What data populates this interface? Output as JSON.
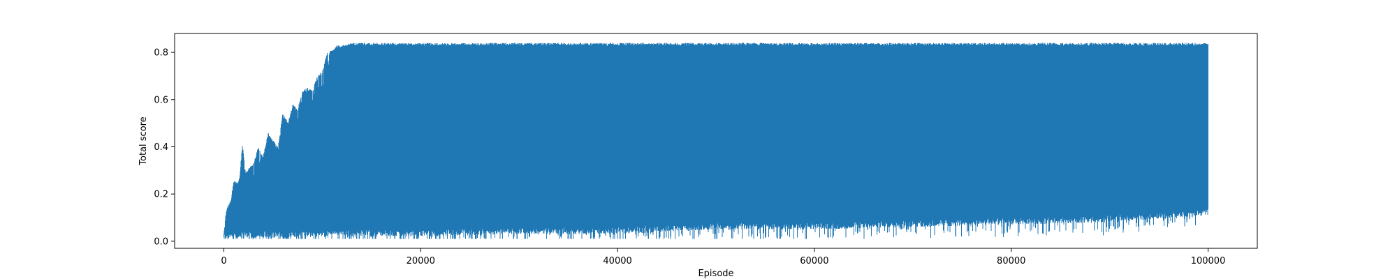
{
  "chart_data": {
    "type": "line",
    "title": "",
    "xlabel": "Episode",
    "ylabel": "Total score",
    "xlim": [
      -5000,
      105000
    ],
    "ylim": [
      -0.03,
      0.88
    ],
    "xticks": [
      0,
      20000,
      40000,
      60000,
      80000,
      100000
    ],
    "xtick_labels": [
      "0",
      "20000",
      "40000",
      "60000",
      "80000",
      "100000"
    ],
    "yticks": [
      0.0,
      0.2,
      0.4,
      0.6,
      0.8
    ],
    "ytick_labels": [
      "0.0",
      "0.2",
      "0.4",
      "0.6",
      "0.8"
    ],
    "grid": false,
    "legend": "none",
    "series": [
      {
        "color": "#1f77b4",
        "envelope_x": [
          0,
          200,
          400,
          700,
          1000,
          1300,
          1600,
          1900,
          2200,
          2500,
          3000,
          3500,
          4000,
          4500,
          5000,
          5500,
          6000,
          6500,
          7000,
          7500,
          8000,
          8500,
          9000,
          9500,
          10000,
          10500,
          11000,
          11500,
          12000,
          13000,
          14000,
          20000,
          30000,
          40000,
          50000,
          60000,
          70000,
          80000,
          90000,
          100000
        ],
        "envelope_upper": [
          0.04,
          0.12,
          0.15,
          0.17,
          0.26,
          0.25,
          0.27,
          0.42,
          0.29,
          0.31,
          0.33,
          0.4,
          0.36,
          0.46,
          0.43,
          0.4,
          0.55,
          0.5,
          0.58,
          0.56,
          0.64,
          0.65,
          0.64,
          0.7,
          0.72,
          0.8,
          0.81,
          0.83,
          0.83,
          0.84,
          0.84,
          0.84,
          0.84,
          0.84,
          0.84,
          0.84,
          0.84,
          0.84,
          0.84,
          0.84
        ],
        "envelope_lower": [
          0.01,
          0.01,
          0.01,
          0.01,
          0.01,
          0.01,
          0.01,
          0.01,
          0.02,
          0.01,
          0.01,
          0.01,
          0.02,
          0.01,
          0.01,
          0.02,
          0.01,
          0.01,
          0.02,
          0.01,
          0.02,
          0.02,
          0.01,
          0.02,
          0.02,
          0.02,
          0.02,
          0.02,
          0.02,
          0.02,
          0.02,
          0.02,
          0.03,
          0.03,
          0.05,
          0.05,
          0.06,
          0.07,
          0.08,
          0.11
        ]
      }
    ]
  }
}
